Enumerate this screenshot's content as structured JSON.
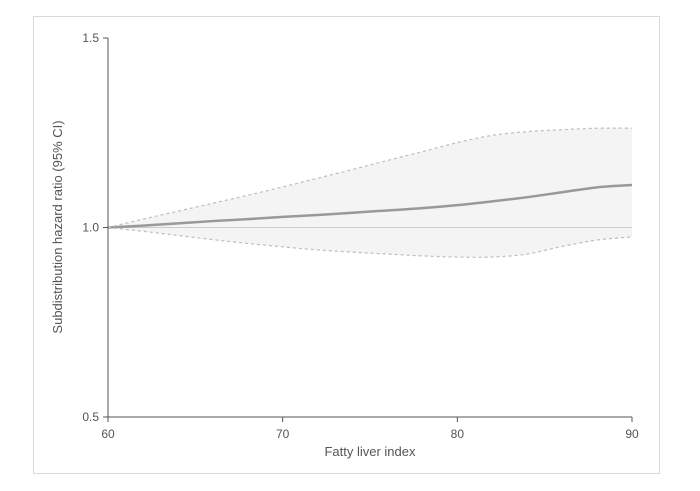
{
  "chart_data": {
    "type": "line",
    "title": "",
    "xlabel": "Fatty liver index",
    "ylabel": "Subdistribution hazard ratio (95% CI)",
    "xlim": [
      60,
      90
    ],
    "ylim": [
      0.5,
      1.5
    ],
    "x_ticks": [
      "60",
      "70",
      "80",
      "90"
    ],
    "y_ticks": [
      "0.5",
      "1.0",
      "1.5"
    ],
    "grid": false,
    "reference_line": 1.0,
    "x": [
      60,
      62,
      64,
      66,
      68,
      70,
      72,
      74,
      76,
      78,
      80,
      82,
      84,
      86,
      88,
      90
    ],
    "series": [
      {
        "role": "estimate",
        "style": "solid",
        "color": "#999999",
        "values": [
          1.0,
          1.005,
          1.011,
          1.017,
          1.022,
          1.028,
          1.033,
          1.039,
          1.045,
          1.051,
          1.059,
          1.069,
          1.08,
          1.093,
          1.106,
          1.112
        ]
      },
      {
        "role": "upper_ci",
        "style": "dashed",
        "color": "#bdbdbd",
        "values": [
          1.0,
          1.022,
          1.043,
          1.064,
          1.085,
          1.107,
          1.13,
          1.153,
          1.177,
          1.2,
          1.224,
          1.243,
          1.253,
          1.258,
          1.262,
          1.262
        ]
      },
      {
        "role": "lower_ci",
        "style": "dashed",
        "color": "#bdbdbd",
        "values": [
          1.0,
          0.99,
          0.979,
          0.968,
          0.958,
          0.949,
          0.941,
          0.935,
          0.93,
          0.925,
          0.922,
          0.922,
          0.93,
          0.95,
          0.967,
          0.975
        ]
      }
    ],
    "band_fill": "#f4f4f4",
    "axis_color": "#555555",
    "reference_line_color": "#cccccc"
  }
}
